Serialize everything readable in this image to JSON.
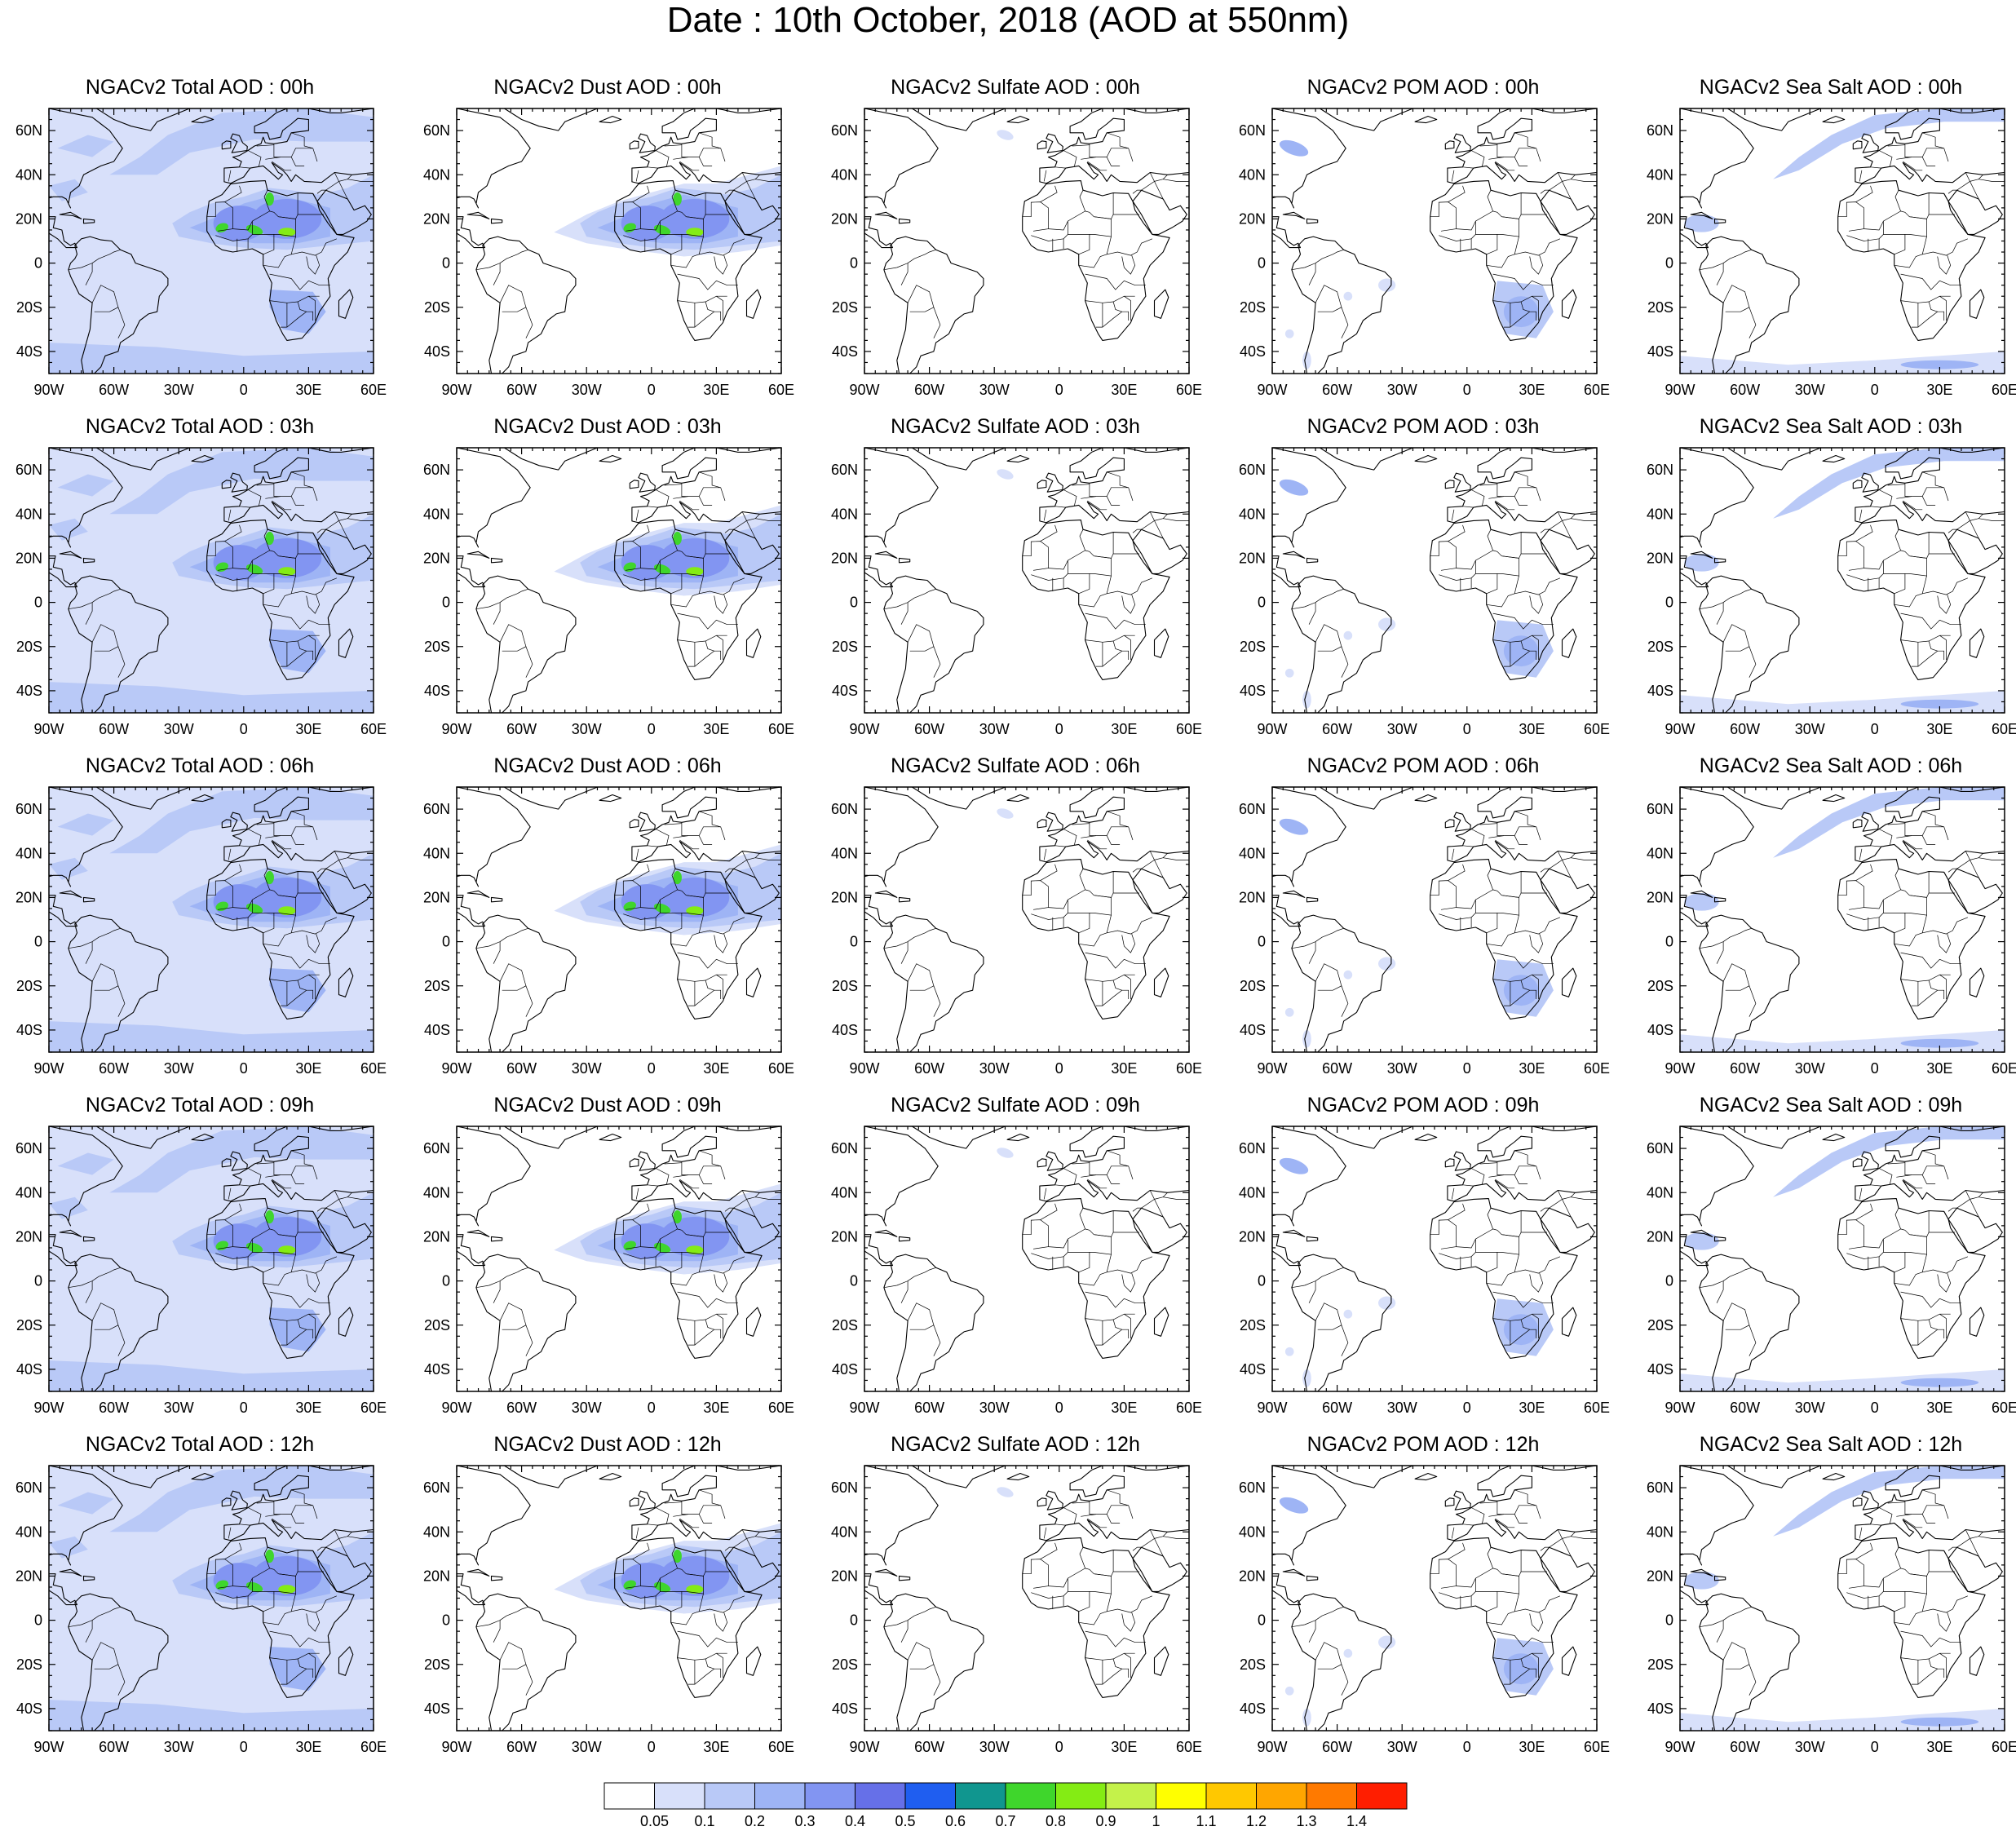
{
  "title": "Date : 10th October, 2018 (AOD at 550nm)",
  "panels": [
    [
      {
        "title": "NGACv2 Total AOD : 00h",
        "field": "total"
      },
      {
        "title": "NGACv2 Dust AOD : 00h",
        "field": "dust"
      },
      {
        "title": "NGACv2 Sulfate AOD : 00h",
        "field": "sulfate"
      },
      {
        "title": "NGACv2 POM AOD : 00h",
        "field": "pom"
      },
      {
        "title": "NGACv2 Sea Salt AOD : 00h",
        "field": "seasalt"
      }
    ],
    [
      {
        "title": "NGACv2 Total AOD : 03h",
        "field": "total"
      },
      {
        "title": "NGACv2 Dust AOD : 03h",
        "field": "dust"
      },
      {
        "title": "NGACv2 Sulfate AOD : 03h",
        "field": "sulfate"
      },
      {
        "title": "NGACv2 POM AOD : 03h",
        "field": "pom"
      },
      {
        "title": "NGACv2 Sea Salt AOD : 03h",
        "field": "seasalt"
      }
    ],
    [
      {
        "title": "NGACv2 Total AOD : 06h",
        "field": "total"
      },
      {
        "title": "NGACv2 Dust AOD : 06h",
        "field": "dust"
      },
      {
        "title": "NGACv2 Sulfate AOD : 06h",
        "field": "sulfate"
      },
      {
        "title": "NGACv2 POM AOD : 06h",
        "field": "pom"
      },
      {
        "title": "NGACv2 Sea Salt AOD : 06h",
        "field": "seasalt"
      }
    ],
    [
      {
        "title": "NGACv2 Total AOD : 09h",
        "field": "total"
      },
      {
        "title": "NGACv2 Dust AOD : 09h",
        "field": "dust"
      },
      {
        "title": "NGACv2 Sulfate AOD : 09h",
        "field": "sulfate"
      },
      {
        "title": "NGACv2 POM AOD : 09h",
        "field": "pom"
      },
      {
        "title": "NGACv2 Sea Salt  AOD : 09h",
        "field": "seasalt"
      }
    ],
    [
      {
        "title": "NGACv2 Total AOD  : 12h",
        "field": "total"
      },
      {
        "title": "NGACv2 Dust AOD : 12h",
        "field": "dust"
      },
      {
        "title": "NGACv2 Sulfate AOD : 12h",
        "field": "sulfate"
      },
      {
        "title": "NGACv2 POM  AOD : 12h",
        "field": "pom"
      },
      {
        "title": "NGACv2 Sea Salt  AOD : 12h",
        "field": "seasalt"
      }
    ]
  ],
  "axes": {
    "lon_labels": [
      "90W",
      "60W",
      "30W",
      "0",
      "30E",
      "60E"
    ],
    "lat_labels": [
      "60N",
      "40N",
      "20N",
      "0",
      "20S",
      "40S"
    ]
  },
  "colorbar": {
    "colors": [
      "#ffffff",
      "#d8e0fa",
      "#b9c9f7",
      "#9eb4f5",
      "#8295f2",
      "#6670e8",
      "#1f5ef0",
      "#10968f",
      "#3fd62c",
      "#84ec14",
      "#c4f24a",
      "#ffff00",
      "#ffc800",
      "#ffa600",
      "#ff7a00",
      "#ff1e00"
    ],
    "labels": [
      "0.05",
      "0.1",
      "0.2",
      "0.3",
      "0.4",
      "0.5",
      "0.6",
      "0.7",
      "0.8",
      "0.9",
      "1",
      "1.1",
      "1.2",
      "1.3",
      "1.4"
    ]
  }
}
